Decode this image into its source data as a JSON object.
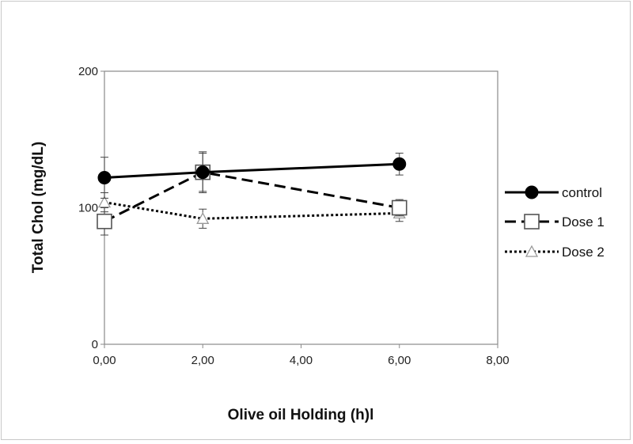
{
  "chart_data": {
    "type": "line",
    "xlabel": "Olive oil Holding (h)l",
    "ylabel": "Total Chol (mg/dL)",
    "xlim": [
      0,
      8
    ],
    "ylim": [
      0,
      200
    ],
    "x_ticks": [
      0,
      2,
      4,
      6,
      8
    ],
    "x_tick_labels": [
      "0,00",
      "2,00",
      "4,00",
      "6,00",
      "8,00"
    ],
    "y_ticks": [
      0,
      100,
      200
    ],
    "y_tick_labels": [
      "0",
      "100",
      "200"
    ],
    "grid": false,
    "legend_position": "right",
    "series": [
      {
        "name": "control",
        "x": [
          0,
          2,
          6
        ],
        "y": [
          122,
          126,
          132
        ],
        "error": [
          15,
          14,
          8
        ],
        "line": "solid",
        "marker": "filled-circle",
        "color": "#000000"
      },
      {
        "name": "Dose 1",
        "x": [
          0,
          2,
          6
        ],
        "y": [
          90,
          126,
          100
        ],
        "error": [
          10,
          15,
          6
        ],
        "line": "dashed",
        "marker": "open-square",
        "color": "#000000"
      },
      {
        "name": "Dose 2",
        "x": [
          0,
          2,
          6
        ],
        "y": [
          104,
          92,
          96
        ],
        "error": [
          7,
          7,
          6
        ],
        "line": "dotted",
        "marker": "open-triangle",
        "color": "#000000"
      }
    ]
  }
}
